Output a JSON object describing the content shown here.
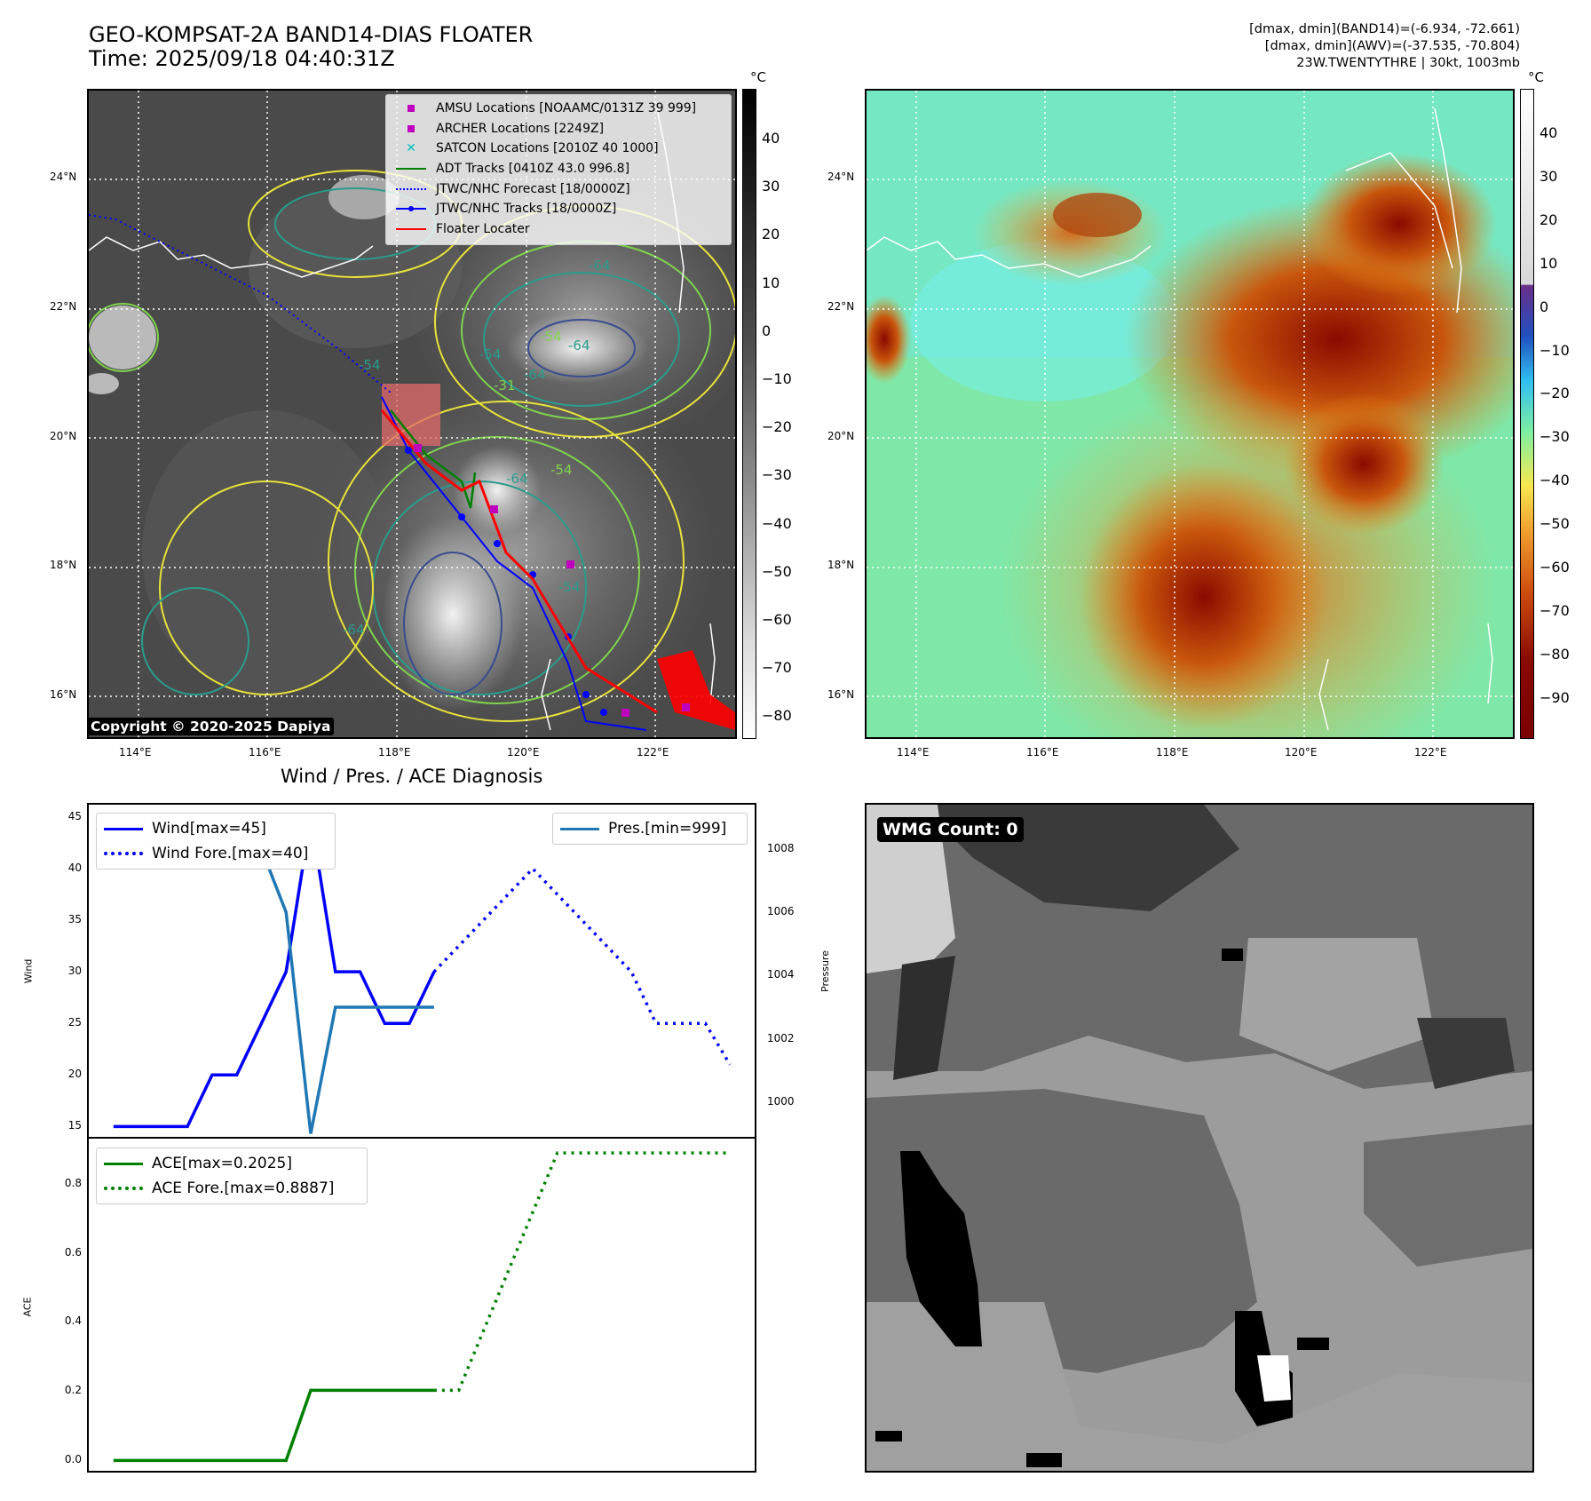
{
  "header": {
    "title_line1": "GEO-KOMPSAT-2A BAND14-DIAS FLOATER",
    "title_line2": "Time: 2025/09/18 04:40:31Z",
    "info_line1": "[dmax, dmin](BAND14)=(-6.934, -72.661)",
    "info_line2": "[dmax, dmin](AWV)=(-37.535, -70.804)",
    "info_line3": "23W.TWENTYTHRE | 30kt, 1003mb"
  },
  "maps": {
    "lat_labels": [
      "24°N",
      "22°N",
      "20°N",
      "18°N",
      "16°N"
    ],
    "lon_labels": [
      "114°E",
      "116°E",
      "118°E",
      "120°E",
      "122°E"
    ],
    "copyright": "Copyright © 2020-2025 Dapiya",
    "ir_colorbar": {
      "unit": "°C",
      "ticks": [
        "40",
        "30",
        "20",
        "10",
        "0",
        "−10",
        "−20",
        "−30",
        "−40",
        "−50",
        "−60",
        "−70",
        "−80"
      ]
    },
    "wv_colorbar": {
      "unit": "°C",
      "ticks": [
        "40",
        "30",
        "20",
        "10",
        "0",
        "−10",
        "−20",
        "−30",
        "−40",
        "−50",
        "−60",
        "−70",
        "−80",
        "−90"
      ]
    },
    "contour_labels": [
      "-64",
      "-54",
      "-31",
      "-64",
      "-64",
      "-54",
      "-54",
      "-54",
      "-64",
      "-54",
      "-64"
    ],
    "legend": [
      {
        "label": "AMSU Locations [NOAAMC/0131Z 39 999]",
        "symbol": "square",
        "color": "#bf00bf"
      },
      {
        "label": "ARCHER Locations [2249Z]",
        "symbol": "square",
        "color": "#bf00bf"
      },
      {
        "label": "SATCON Locations [2010Z 40 1000]",
        "symbol": "x",
        "color": "#00bfbf"
      },
      {
        "label": "ADT Tracks [0410Z 43.0 996.8]",
        "symbol": "line",
        "color": "#008000"
      },
      {
        "label": "JTWC/NHC Forecast [18/0000Z]",
        "symbol": "dotted",
        "color": "#0000ff"
      },
      {
        "label": "JTWC/NHC Tracks [18/0000Z]",
        "symbol": "line-dot",
        "color": "#0000ff"
      },
      {
        "label": "Floater Locater",
        "symbol": "line",
        "color": "#ff0000"
      }
    ],
    "wmg_label": "WMG Count: 0"
  },
  "diag_title": "Wind / Pres. / ACE Diagnosis",
  "chart_data": [
    {
      "type": "line",
      "title": "Wind / Pres. / ACE Diagnosis",
      "ylabel": "Wind",
      "y2label": "Pressure",
      "ylim": [
        14,
        46.2
      ],
      "y2lim": [
        998.9,
        1009.4
      ],
      "y_ticks": [
        "45",
        "40",
        "35",
        "30",
        "25",
        "20",
        "15"
      ],
      "y2_ticks": [
        "1008",
        "1006",
        "1004",
        "1002",
        "1000"
      ],
      "series": [
        {
          "name": "Wind[max=45]",
          "color": "#0000ff",
          "style": "solid",
          "x": [
            0,
            1,
            2,
            3,
            4,
            5,
            6,
            7,
            8,
            9,
            10,
            11,
            12,
            13
          ],
          "values": [
            15,
            15,
            15,
            15,
            20,
            20,
            25,
            30,
            45,
            30,
            30,
            25,
            25,
            30
          ]
        },
        {
          "name": "Wind Fore.[max=40]",
          "color": "#0000ff",
          "style": "dotted",
          "x": [
            13,
            17,
            21,
            22,
            23,
            24,
            25
          ],
          "values": [
            30,
            40,
            30,
            25,
            25,
            25,
            21
          ]
        },
        {
          "name": "Pres.[min=999]",
          "color": "#1f77b4",
          "style": "solid",
          "axis": "right",
          "x": [
            0,
            1,
            2,
            3,
            4,
            5,
            6,
            7,
            8,
            9,
            10,
            11,
            12,
            13
          ],
          "values": [
            1009,
            1009,
            1008,
            1008,
            1008,
            1008,
            1008,
            1006,
            999,
            1003,
            1003,
            1003,
            1003,
            1003
          ]
        }
      ]
    },
    {
      "type": "line",
      "ylabel": "ACE",
      "ylim": [
        -0.03,
        0.93
      ],
      "y_ticks": [
        "0.8",
        "0.6",
        "0.4",
        "0.2",
        "0.0"
      ],
      "series": [
        {
          "name": "ACE[max=0.2025]",
          "color": "#008000",
          "style": "solid",
          "x": [
            0,
            1,
            2,
            3,
            4,
            5,
            6,
            7,
            8,
            9,
            10,
            11,
            12,
            13
          ],
          "values": [
            0,
            0,
            0,
            0,
            0,
            0,
            0,
            0,
            0.2025,
            0.2025,
            0.2025,
            0.2025,
            0.2025,
            0.2025
          ]
        },
        {
          "name": "ACE Fore.[max=0.8887]",
          "color": "#008000",
          "style": "dotted",
          "x": [
            13,
            14,
            18,
            20,
            25
          ],
          "values": [
            0.2025,
            0.2025,
            0.8887,
            0.8887,
            0.8887
          ]
        }
      ]
    }
  ]
}
